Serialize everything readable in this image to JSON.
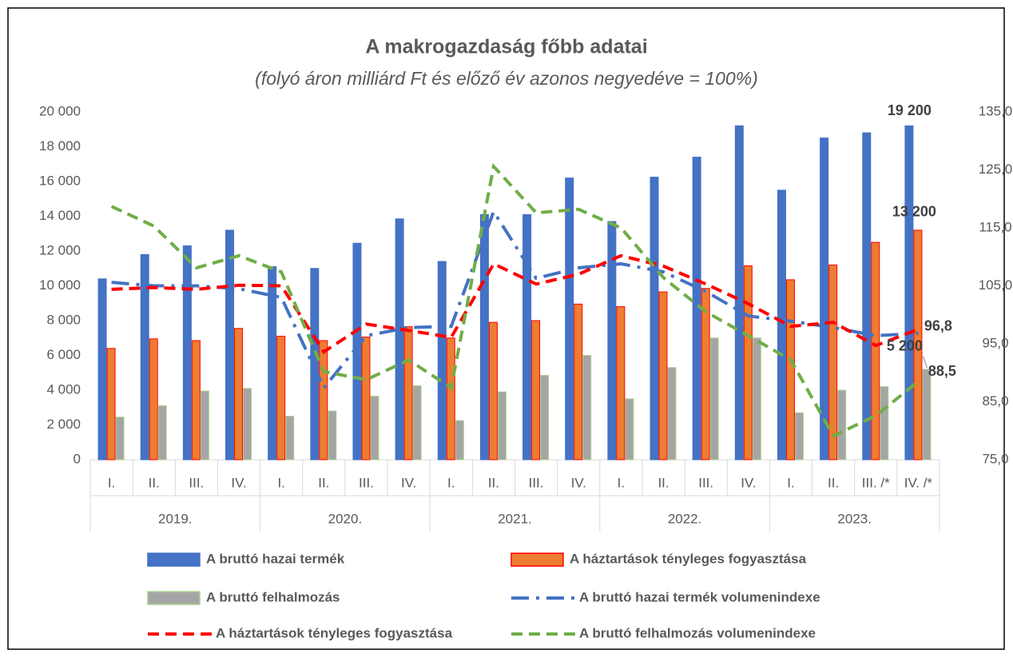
{
  "chart_data": {
    "type": "bar",
    "title": "A makrogazdaság főbb adatai",
    "subtitle": "(folyó áron milliárd Ft és előző év azonos negyedéve = 100%)",
    "categories": [
      "I.",
      "II.",
      "III.",
      "IV.",
      "I.",
      "II.",
      "III.",
      "IV.",
      "I.",
      "II.",
      "III.",
      "IV.",
      "I.",
      "II.",
      "III.",
      "IV.",
      "I.",
      "II.",
      "III. /*",
      "IV. /*"
    ],
    "years": [
      "2019.",
      "2020.",
      "2021.",
      "2022.",
      "2023."
    ],
    "ylim": [
      0,
      20000
    ],
    "yticks": [
      0,
      {
        "value": 2000,
        "label": "2 000"
      },
      {
        "value": 4000,
        "label": "4 000"
      },
      {
        "value": 6000,
        "label": "6 000"
      },
      {
        "value": 8000,
        "label": "8 000"
      },
      {
        "value": 10000,
        "label": "10 000"
      },
      {
        "value": 12000,
        "label": "12 000"
      },
      {
        "value": 14000,
        "label": "14 000"
      },
      {
        "value": 16000,
        "label": "16 000"
      },
      {
        "value": 18000,
        "label": "18 000"
      },
      {
        "value": 20000,
        "label": "20 000"
      }
    ],
    "y2lim": [
      75,
      135
    ],
    "y2ticks": [
      {
        "value": 75,
        "label": "75,0"
      },
      {
        "value": 85,
        "label": "85,0"
      },
      {
        "value": 95,
        "label": "95,0"
      },
      {
        "value": 105,
        "label": "105,0"
      },
      {
        "value": 115,
        "label": "115,0"
      },
      {
        "value": 125,
        "label": "125,0"
      },
      {
        "value": 135,
        "label": "135,0"
      }
    ],
    "series": [
      {
        "name": "A bruttó hazai termék",
        "kind": "bar",
        "color": "#4472c4",
        "stroke": "#4472c4",
        "values": [
          10400,
          11800,
          12300,
          13200,
          11100,
          11000,
          12450,
          13850,
          11400,
          14100,
          14100,
          16200,
          13700,
          16250,
          17400,
          19200,
          15500,
          18500,
          18800,
          19200
        ],
        "value_labels": [
          null,
          null,
          null,
          null,
          null,
          null,
          null,
          null,
          null,
          null,
          null,
          null,
          null,
          null,
          null,
          null,
          null,
          null,
          null,
          "19 200"
        ]
      },
      {
        "name": "A háztartások tényleges fogyasztása",
        "kind": "bar",
        "color": "#ed7d31",
        "stroke": "#ff0000",
        "values": [
          6400,
          6950,
          6850,
          7550,
          7100,
          6850,
          7050,
          7650,
          7000,
          7900,
          8000,
          8950,
          8800,
          9650,
          9850,
          11150,
          10350,
          11200,
          12500,
          13200
        ],
        "value_labels": [
          null,
          null,
          null,
          null,
          null,
          null,
          null,
          null,
          null,
          null,
          null,
          null,
          null,
          null,
          null,
          null,
          null,
          null,
          null,
          "13 200"
        ]
      },
      {
        "name": "A bruttó felhalmozás",
        "kind": "bar",
        "color": "#a5a5a5",
        "stroke": "#a9d18e",
        "values": [
          2450,
          3100,
          3950,
          4100,
          2500,
          2800,
          3650,
          4250,
          2250,
          3900,
          4850,
          6000,
          3500,
          5300,
          7000,
          7000,
          2700,
          4000,
          4200,
          5200
        ],
        "value_labels": [
          null,
          null,
          null,
          null,
          null,
          null,
          null,
          null,
          null,
          null,
          null,
          null,
          null,
          null,
          null,
          null,
          null,
          null,
          null,
          "5 200"
        ]
      },
      {
        "name": "A bruttó hazai termék volumenindexe",
        "kind": "line",
        "axis": "y2",
        "color": "#4472c4",
        "dash": "dash-dot",
        "values": [
          105.6,
          105.0,
          105.0,
          104.5,
          103.0,
          87.4,
          96.4,
          97.8,
          98.0,
          117.8,
          106.3,
          108.1,
          108.8,
          107.4,
          104.0,
          99.8,
          98.9,
          97.8,
          96.4,
          96.8
        ],
        "value_labels": [
          null,
          null,
          null,
          null,
          null,
          null,
          null,
          null,
          null,
          null,
          null,
          null,
          null,
          null,
          null,
          null,
          null,
          null,
          null,
          "96,8"
        ]
      },
      {
        "name": "A háztartások tényleges fogyasztása",
        "kind": "line",
        "axis": "y2",
        "color": "#ff0000",
        "dash": "dash",
        "values": [
          104.4,
          104.7,
          104.4,
          105.1,
          105.0,
          93.6,
          98.4,
          97.3,
          96.1,
          108.8,
          105.3,
          107.0,
          110.2,
          108.4,
          105.3,
          101.9,
          98.0,
          98.7,
          94.7,
          97.5
        ]
      },
      {
        "name": "A bruttó felhalmozás volumenindexe",
        "kind": "line",
        "axis": "y2",
        "color": "#70ad47",
        "dash": "dash",
        "values": [
          118.7,
          115.3,
          108.1,
          110.2,
          107.4,
          90.2,
          88.8,
          92.2,
          87.4,
          125.6,
          117.6,
          118.2,
          115.0,
          106.4,
          100.5,
          96.4,
          92.2,
          79.1,
          82.6,
          88.5
        ],
        "value_labels": [
          null,
          null,
          null,
          null,
          null,
          null,
          null,
          null,
          null,
          null,
          null,
          null,
          null,
          null,
          null,
          null,
          null,
          null,
          null,
          "88,5"
        ]
      }
    ]
  }
}
